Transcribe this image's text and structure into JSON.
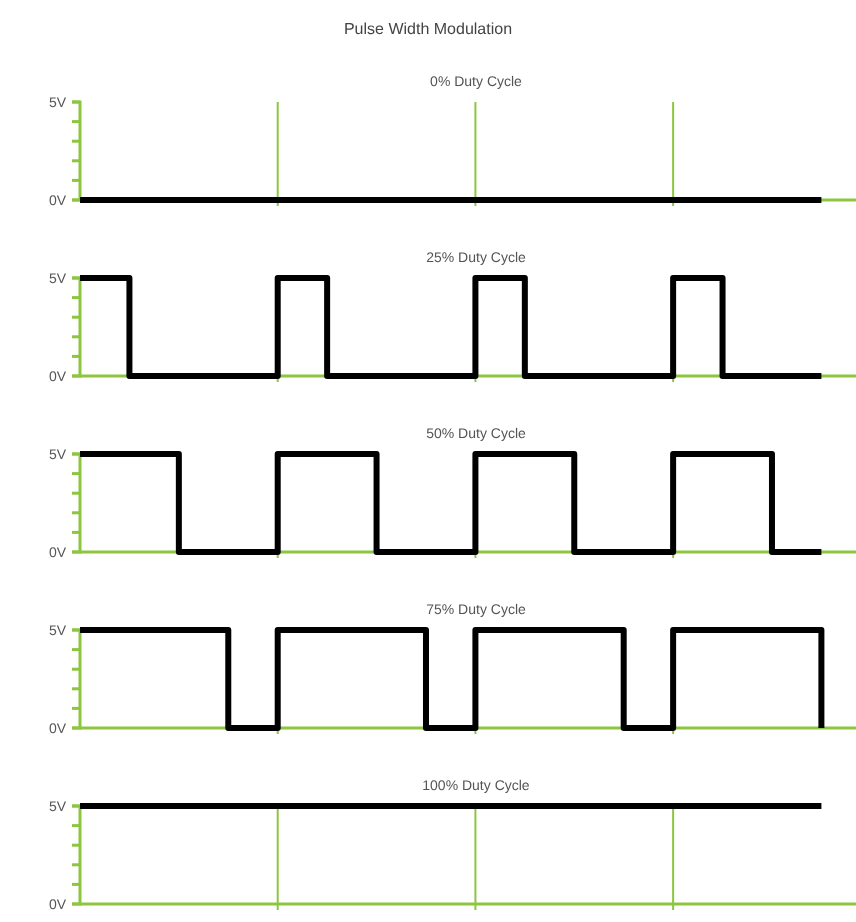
{
  "chart_data": [
    {
      "type": "step",
      "title": "Pulse Width Modulation",
      "subtitle": "0% Duty Cycle",
      "categories": [
        null,
        null,
        null,
        null,
        null,
        null,
        null,
        null,
        null,
        null,
        null,
        null,
        null,
        null,
        null,
        null
      ],
      "values": [
        0,
        0,
        0,
        0,
        0,
        0,
        0,
        0,
        0,
        0,
        0,
        0,
        0,
        0,
        0,
        0
      ],
      "color": "#000000",
      "ylim": [
        0,
        5
      ],
      "yticks": [
        {
          "value": 0,
          "label": "0V"
        },
        {
          "value": 1,
          "label": null
        },
        {
          "value": 2,
          "label": null
        },
        {
          "value": 3,
          "label": null
        },
        {
          "value": 4,
          "label": null
        },
        {
          "value": 5,
          "label": "5V"
        }
      ],
      "grid": "x"
    },
    {
      "type": "step",
      "subtitle": "25% Duty Cycle",
      "categories": [
        null,
        null,
        null,
        null,
        null,
        null,
        null,
        null,
        null,
        null,
        null,
        null,
        null,
        null,
        null,
        null
      ],
      "values": [
        5,
        0,
        0,
        0,
        5,
        0,
        0,
        0,
        5,
        0,
        0,
        0,
        5,
        0,
        0,
        0
      ],
      "color": "#000000",
      "ylim": [
        0,
        5
      ],
      "yticks": [
        {
          "value": 0,
          "label": "0V"
        },
        {
          "value": 1,
          "label": null
        },
        {
          "value": 2,
          "label": null
        },
        {
          "value": 3,
          "label": null
        },
        {
          "value": 4,
          "label": null
        },
        {
          "value": 5,
          "label": "5V"
        }
      ],
      "grid": "x"
    },
    {
      "type": "step",
      "subtitle": "50% Duty Cycle",
      "categories": [
        null,
        null,
        null,
        null,
        null,
        null,
        null,
        null,
        null,
        null,
        null,
        null,
        null,
        null,
        null,
        null
      ],
      "values": [
        5,
        5,
        0,
        0,
        5,
        5,
        0,
        0,
        5,
        5,
        0,
        0,
        5,
        5,
        0,
        0
      ],
      "color": "#000000",
      "ylim": [
        0,
        5
      ],
      "yticks": [
        {
          "value": 0,
          "label": "0V"
        },
        {
          "value": 1,
          "label": null
        },
        {
          "value": 2,
          "label": null
        },
        {
          "value": 3,
          "label": null
        },
        {
          "value": 4,
          "label": null
        },
        {
          "value": 5,
          "label": "5V"
        }
      ],
      "grid": "x"
    },
    {
      "type": "step",
      "subtitle": "75% Duty Cycle",
      "categories": [
        null,
        null,
        null,
        null,
        null,
        null,
        null,
        null,
        null,
        null,
        null,
        null,
        null,
        null,
        null,
        null
      ],
      "values": [
        5,
        5,
        5,
        0,
        5,
        5,
        5,
        0,
        5,
        5,
        5,
        0,
        5,
        5,
        5,
        0
      ],
      "color": "#000000",
      "ylim": [
        0,
        5
      ],
      "yticks": [
        {
          "value": 0,
          "label": "0V"
        },
        {
          "value": 1,
          "label": null
        },
        {
          "value": 2,
          "label": null
        },
        {
          "value": 3,
          "label": null
        },
        {
          "value": 4,
          "label": null
        },
        {
          "value": 5,
          "label": "5V"
        }
      ],
      "grid": "x"
    },
    {
      "type": "step",
      "subtitle": "100% Duty Cycle",
      "categories": [
        null,
        null,
        null,
        null,
        null,
        null,
        null,
        null,
        null,
        null,
        null,
        null,
        null,
        null,
        null,
        null
      ],
      "values": [
        5,
        5,
        5,
        5,
        5,
        5,
        5,
        5,
        5,
        5,
        5,
        5,
        5,
        5,
        5,
        5
      ],
      "color": "#000000",
      "ylim": [
        0,
        5
      ],
      "yticks": [
        {
          "value": 0,
          "label": "0V"
        },
        {
          "value": 1,
          "label": null
        },
        {
          "value": 2,
          "label": null
        },
        {
          "value": 3,
          "label": null
        },
        {
          "value": 4,
          "label": null
        },
        {
          "value": 5,
          "label": "5V"
        }
      ],
      "grid": "x"
    }
  ]
}
